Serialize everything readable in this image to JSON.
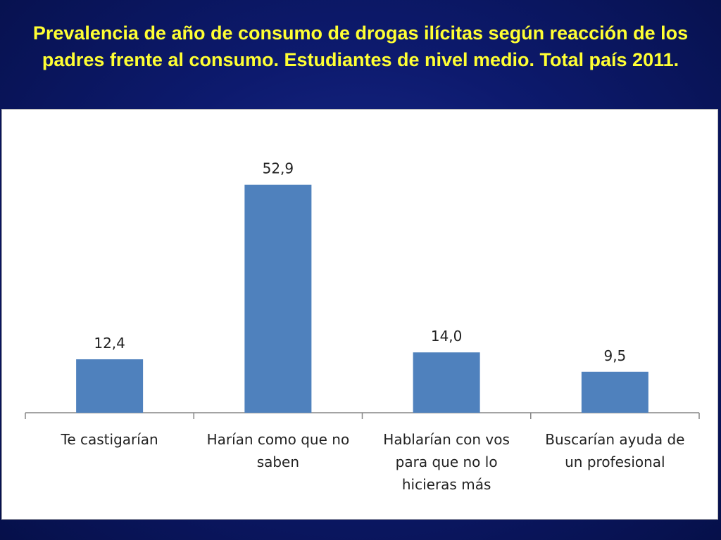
{
  "slide": {
    "title": "Prevalencia de año de consumo de drogas ilícitas según reacción de los padres frente al consumo. Estudiantes de nivel medio. Total país 2011."
  },
  "colors": {
    "bar": "#4f81bd",
    "title": "#ffff33",
    "axis": "#868686"
  },
  "chart_data": {
    "type": "bar",
    "title": "",
    "xlabel": "",
    "ylabel": "",
    "categories": [
      [
        "Te castigarían"
      ],
      [
        "Harían como que no",
        "saben"
      ],
      [
        "Hablarían con vos",
        "para que no lo",
        "hicieras más"
      ],
      [
        "Buscarían ayuda de",
        "un profesional"
      ]
    ],
    "values": [
      12.4,
      52.9,
      14.0,
      9.5
    ],
    "data_labels": [
      "12,4",
      "52,9",
      "14,0",
      "9,5"
    ],
    "ylim": [
      0,
      60
    ],
    "grid": false,
    "legend": "none"
  }
}
